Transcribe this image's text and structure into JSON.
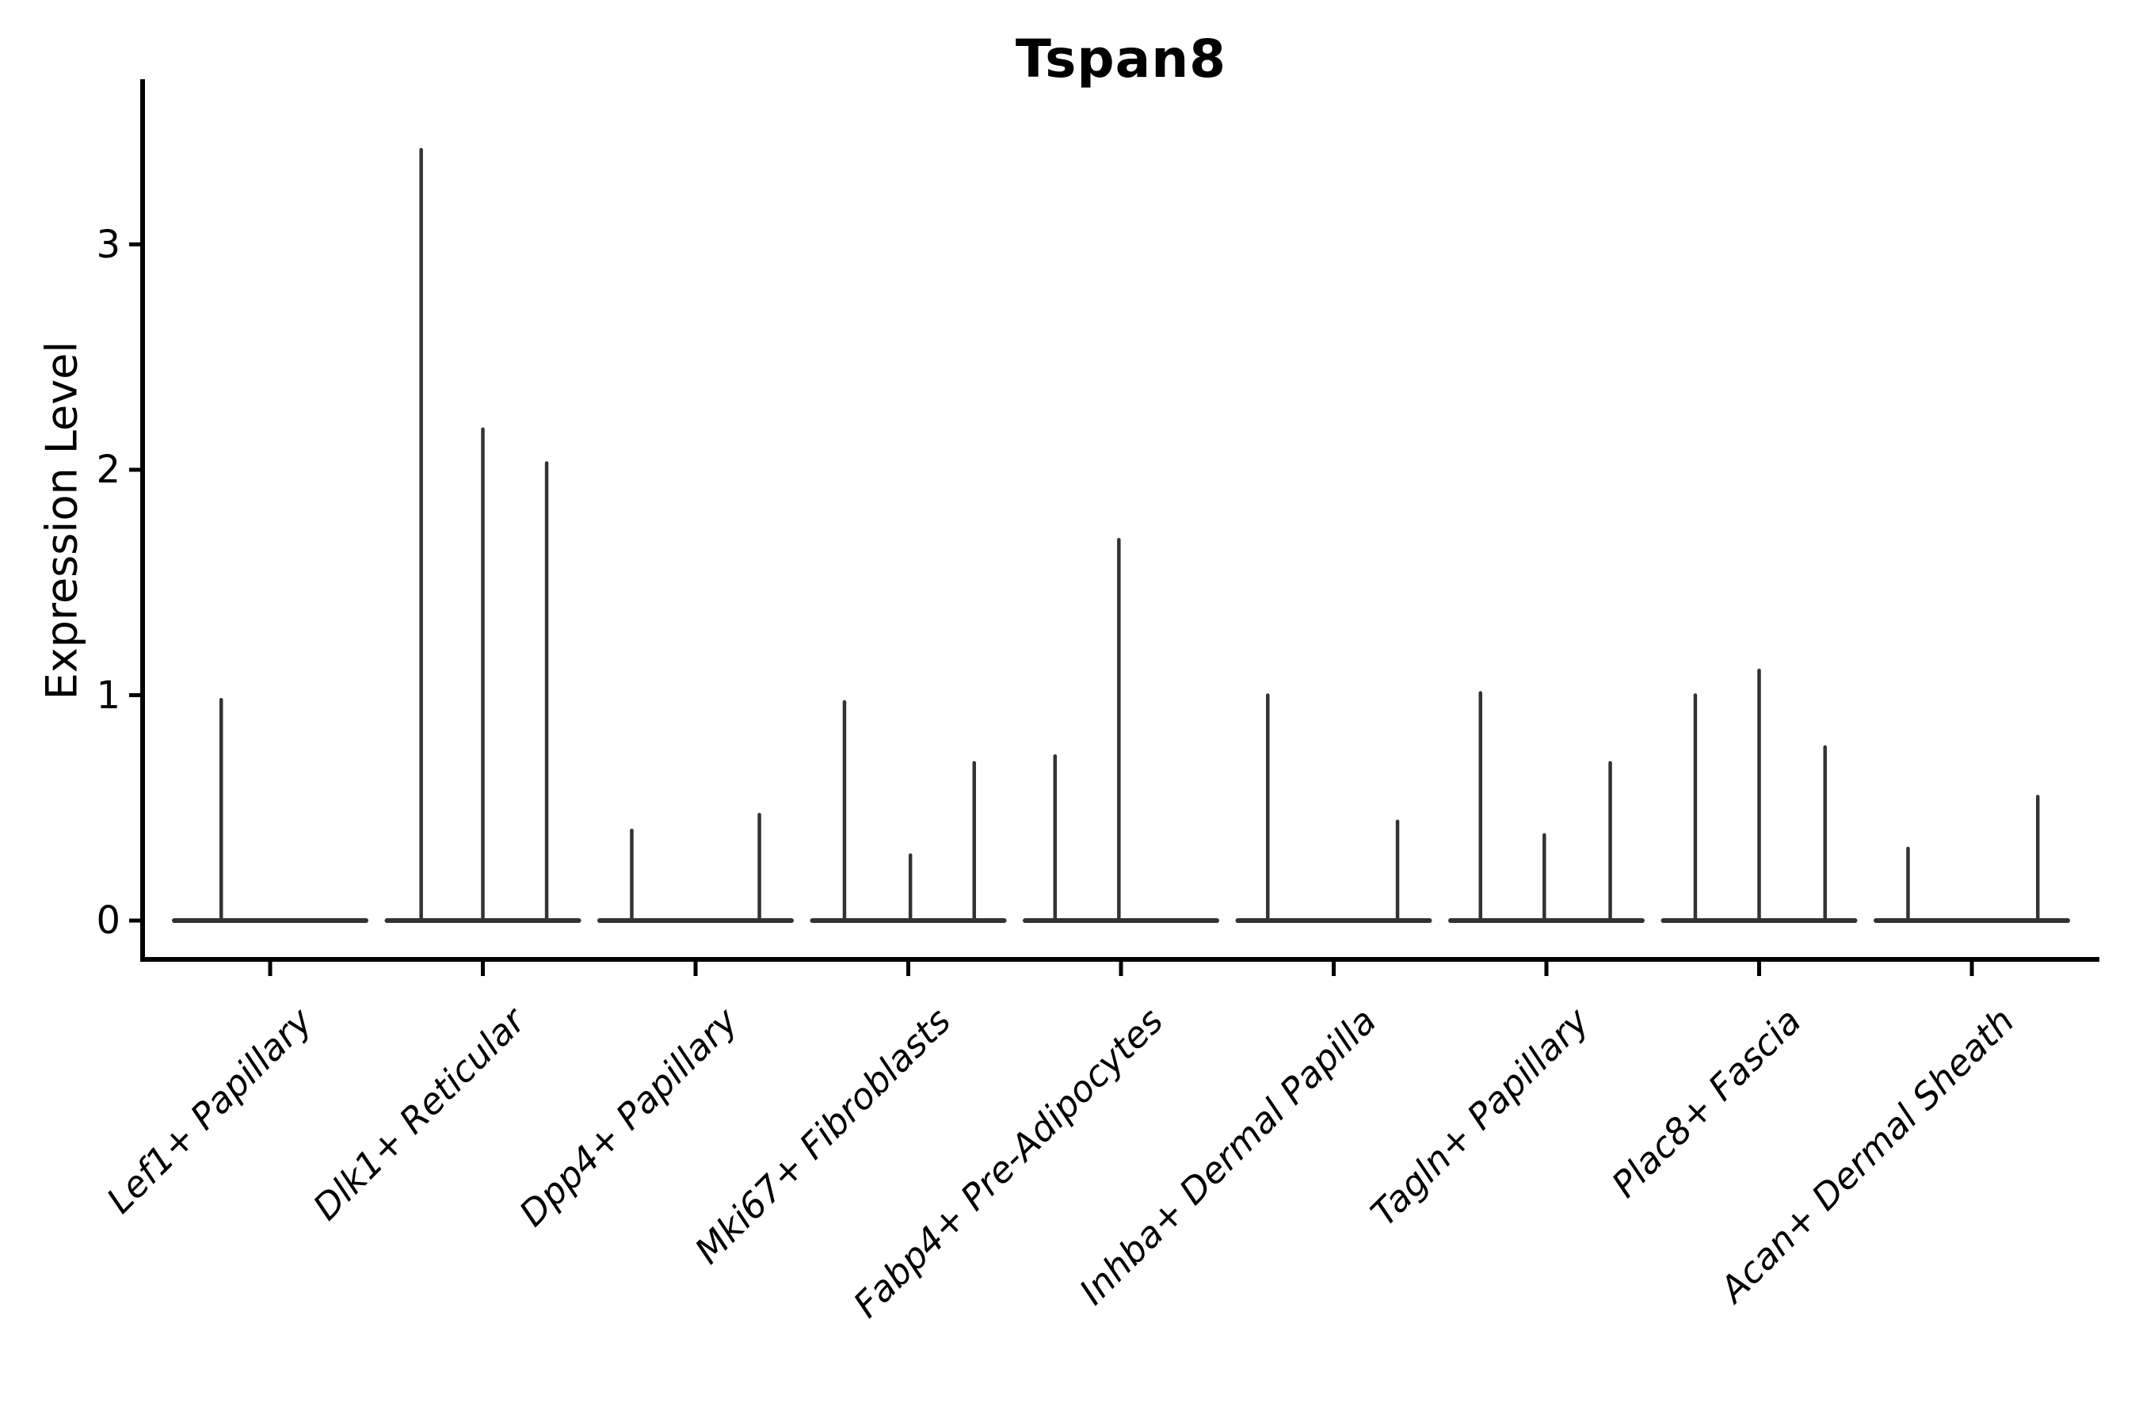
{
  "figure": {
    "background": "#ffffff"
  },
  "chart_data": {
    "type": "violin",
    "title": "Tspan8",
    "xlabel": "",
    "ylabel": "Expression Level",
    "ylim": [
      -0.18,
      3.73
    ],
    "yticks": [
      "0",
      "1",
      "2",
      "3"
    ],
    "grid": false,
    "legend": "none",
    "mark_color": "#333333",
    "axis_color": "#000000",
    "categories": [
      "Lef1+ Papillary",
      "Dlk1+ Reticular",
      "Dpp4+ Papillary",
      "Mki67+ Fibroblasts",
      "Fabp4+ Pre-Adipocytes",
      "Inhba+ Dermal Papilla",
      "Tagln+ Papillary",
      "Plac8+ Fascia",
      "Acan+ Dermal Sheath"
    ],
    "series": [
      {
        "category": "Lef1+ Papillary",
        "spikes": [
          {
            "offset": -0.23,
            "value": 0.98
          }
        ]
      },
      {
        "category": "Dlk1+ Reticular",
        "spikes": [
          {
            "offset": -0.29,
            "value": 3.42
          },
          {
            "offset": 0.0,
            "value": 2.18
          },
          {
            "offset": 0.3,
            "value": 2.03
          }
        ]
      },
      {
        "category": "Dpp4+ Papillary",
        "spikes": [
          {
            "offset": -0.3,
            "value": 0.4
          },
          {
            "offset": 0.3,
            "value": 0.47
          }
        ]
      },
      {
        "category": "Mki67+ Fibroblasts",
        "spikes": [
          {
            "offset": -0.3,
            "value": 0.97
          },
          {
            "offset": 0.01,
            "value": 0.29
          },
          {
            "offset": 0.31,
            "value": 0.7
          }
        ]
      },
      {
        "category": "Fabp4+ Pre-Adipocytes",
        "spikes": [
          {
            "offset": -0.31,
            "value": 0.73
          },
          {
            "offset": -0.01,
            "value": 1.69
          }
        ]
      },
      {
        "category": "Inhba+ Dermal Papilla",
        "spikes": [
          {
            "offset": -0.31,
            "value": 1.0
          },
          {
            "offset": 0.3,
            "value": 0.44
          }
        ]
      },
      {
        "category": "Tagln+ Papillary",
        "spikes": [
          {
            "offset": -0.31,
            "value": 1.01
          },
          {
            "offset": -0.01,
            "value": 0.38
          },
          {
            "offset": 0.3,
            "value": 0.7
          }
        ]
      },
      {
        "category": "Plac8+ Fascia",
        "spikes": [
          {
            "offset": -0.3,
            "value": 1.0
          },
          {
            "offset": 0.0,
            "value": 1.11
          },
          {
            "offset": 0.31,
            "value": 0.77
          }
        ]
      },
      {
        "category": "Acan+ Dermal Sheath",
        "spikes": [
          {
            "offset": -0.3,
            "value": 0.32
          },
          {
            "offset": 0.31,
            "value": 0.55
          }
        ]
      }
    ]
  }
}
